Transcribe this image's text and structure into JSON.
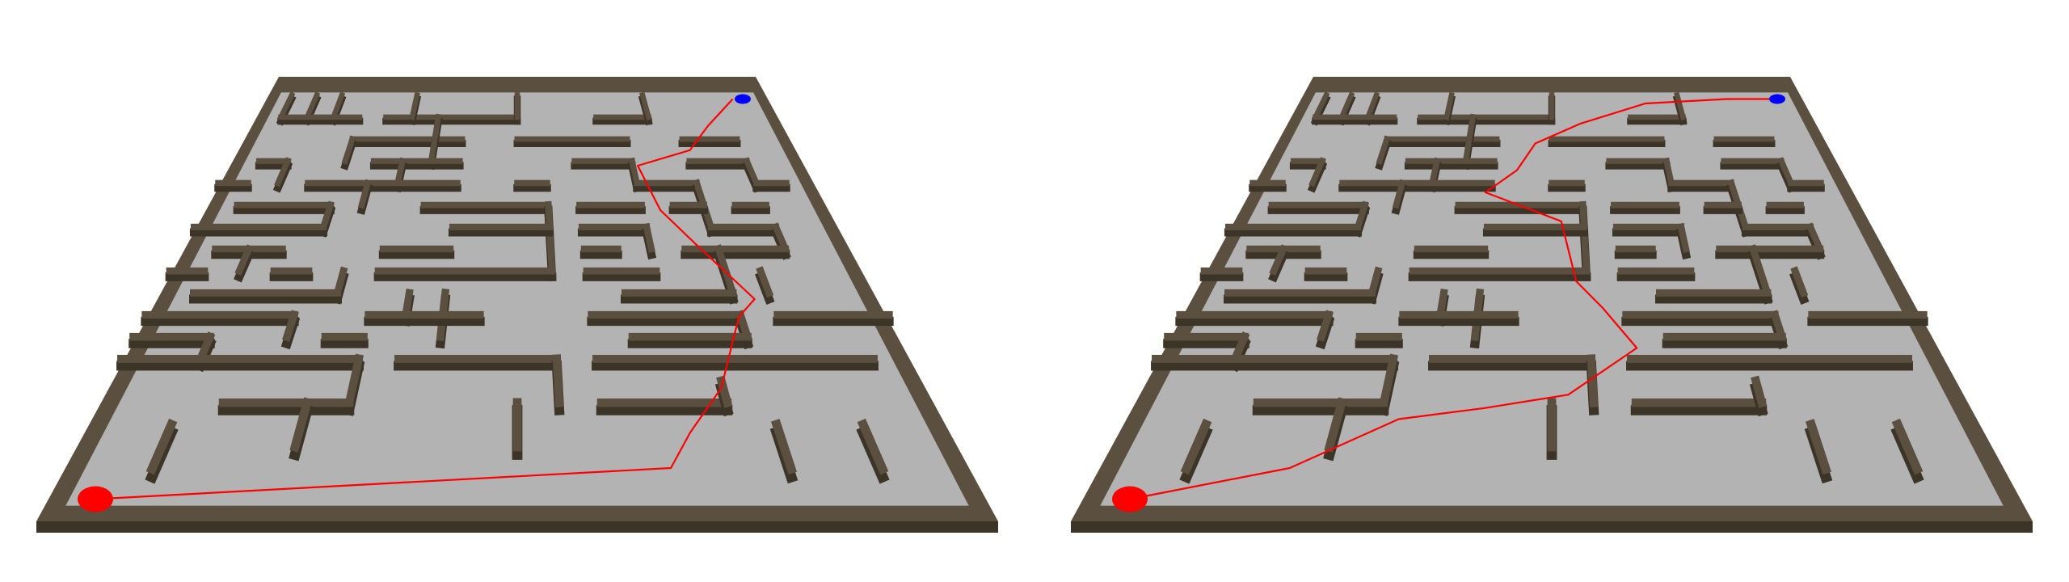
{
  "scene": {
    "description_free": true,
    "colors": {
      "background": "#ffffff",
      "floor": "#b3b3b3",
      "wall_top": "#5b4f3f",
      "wall_side": "#3d3428",
      "start_marker": "#ff0000",
      "goal_marker": "#0000ff",
      "path": "#ff0000"
    }
  },
  "panels": [
    {
      "id": "left",
      "route": "route_a"
    },
    {
      "id": "right",
      "route": "route_b"
    }
  ],
  "maze": {
    "grid_size": 20,
    "start_cell": [
      1,
      19
    ],
    "goal_cell": [
      19,
      1
    ]
  }
}
